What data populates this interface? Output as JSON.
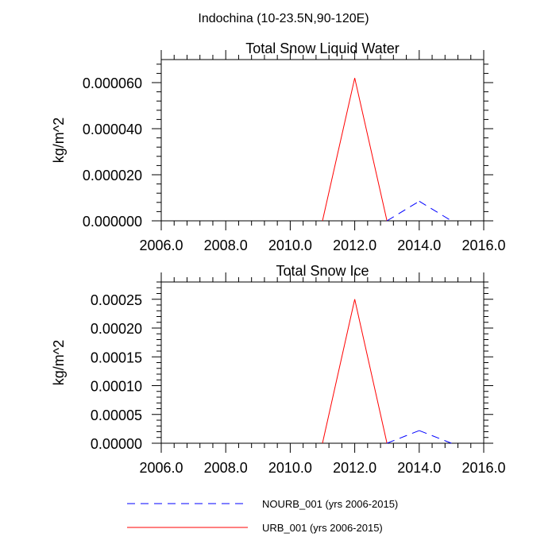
{
  "figure_title": "Indochina (10-23.5N,90-120E)",
  "legend": {
    "entries": [
      {
        "label": "NOURB_001 (yrs 2006-2015)",
        "color": "#0000ff",
        "dash": "dashed"
      },
      {
        "label": "URB_001 (yrs 2006-2015)",
        "color": "#ff0000",
        "dash": "solid"
      }
    ]
  },
  "chart_data": [
    {
      "type": "line",
      "title": "Total Snow Liquid Water",
      "xlabel": "",
      "ylabel": "kg/m^2",
      "xlim": [
        2006,
        2016
      ],
      "ylim": [
        0,
        7e-05
      ],
      "x_ticks": [
        2006,
        2008,
        2010,
        2012,
        2014,
        2016
      ],
      "x_tick_labels": [
        "2006.0",
        "2008.0",
        "2010.0",
        "2012.0",
        "2014.0",
        "2016.0"
      ],
      "y_ticks": [
        0,
        2e-05,
        4e-05,
        6e-05
      ],
      "y_tick_labels": [
        "0.000000",
        "0.000020",
        "0.000040",
        "0.000060"
      ],
      "series": [
        {
          "name": "URB_001 (yrs 2006-2015)",
          "color": "#ff0000",
          "dash": "solid",
          "x": [
            2006,
            2007,
            2008,
            2009,
            2010,
            2011,
            2012,
            2013,
            2014,
            2015
          ],
          "y": [
            0,
            0,
            0,
            0,
            0,
            0,
            6.2e-05,
            0,
            0,
            0
          ]
        },
        {
          "name": "NOURB_001 (yrs 2006-2015)",
          "color": "#0000ff",
          "dash": "dashed",
          "x": [
            2006,
            2007,
            2008,
            2009,
            2010,
            2011,
            2012,
            2013,
            2014,
            2015
          ],
          "y": [
            0,
            0,
            0,
            0,
            0,
            0,
            0,
            0,
            8.5e-06,
            0
          ]
        }
      ]
    },
    {
      "type": "line",
      "title": "Total Snow Ice",
      "xlabel": "",
      "ylabel": "kg/m^2",
      "xlim": [
        2006,
        2016
      ],
      "ylim": [
        0,
        0.00028
      ],
      "x_ticks": [
        2006,
        2008,
        2010,
        2012,
        2014,
        2016
      ],
      "x_tick_labels": [
        "2006.0",
        "2008.0",
        "2010.0",
        "2012.0",
        "2014.0",
        "2016.0"
      ],
      "y_ticks": [
        0,
        5e-05,
        0.0001,
        0.00015,
        0.0002,
        0.00025
      ],
      "y_tick_labels": [
        "0.00000",
        "0.00005",
        "0.00010",
        "0.00015",
        "0.00020",
        "0.00025"
      ],
      "series": [
        {
          "name": "URB_001 (yrs 2006-2015)",
          "color": "#ff0000",
          "dash": "solid",
          "x": [
            2006,
            2007,
            2008,
            2009,
            2010,
            2011,
            2012,
            2013,
            2014,
            2015
          ],
          "y": [
            0,
            0,
            0,
            0,
            0,
            0,
            0.00025,
            0,
            0,
            0
          ]
        },
        {
          "name": "NOURB_001 (yrs 2006-2015)",
          "color": "#0000ff",
          "dash": "dashed",
          "x": [
            2006,
            2007,
            2008,
            2009,
            2010,
            2011,
            2012,
            2013,
            2014,
            2015
          ],
          "y": [
            0,
            0,
            0,
            0,
            0,
            0,
            0,
            0,
            2.2e-05,
            0
          ]
        }
      ]
    }
  ]
}
